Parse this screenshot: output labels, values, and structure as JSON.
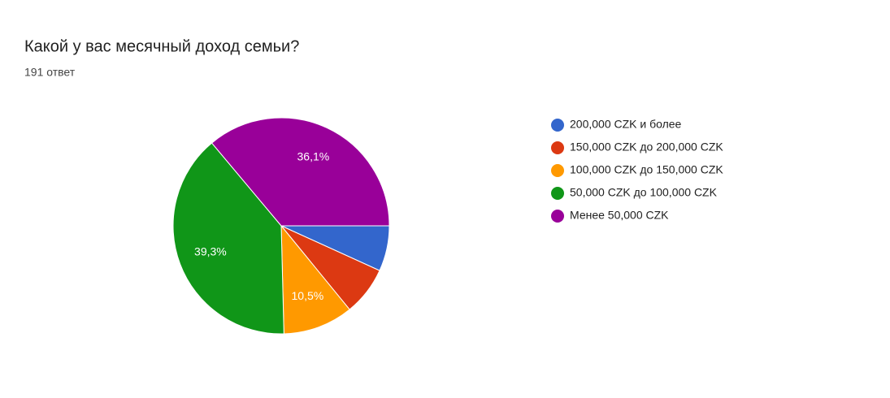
{
  "chart_data": {
    "type": "pie",
    "title": "Какой у вас месячный доход семьи?",
    "subtitle": "191 ответ",
    "categories": [
      "200,000 CZK и более",
      "150,000 CZK до 200,000 CZK",
      "100,000 CZK до 150,000 CZK",
      "50,000 CZK до 100,000 CZK",
      "Менее 50,000 CZK"
    ],
    "values": [
      6.8,
      7.3,
      10.5,
      39.3,
      36.1
    ],
    "value_labels": [
      null,
      null,
      "10,5%",
      "39,3%",
      "36,1%"
    ],
    "colors": [
      "#3366cc",
      "#dc3912",
      "#ff9900",
      "#109618",
      "#990099"
    ],
    "legend": "right"
  }
}
